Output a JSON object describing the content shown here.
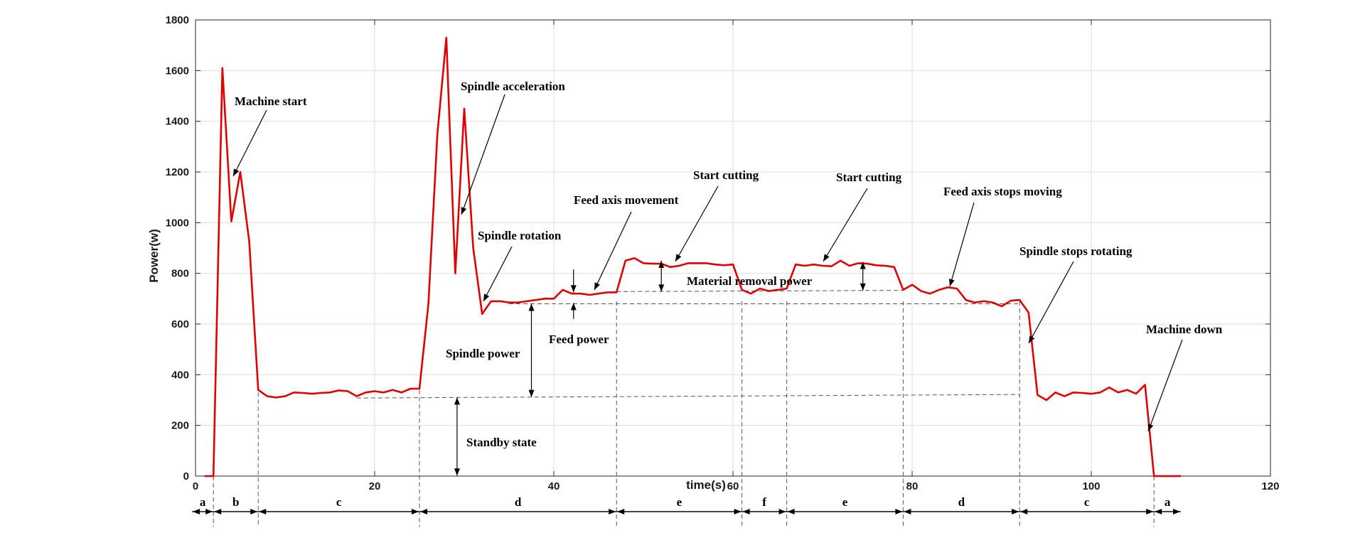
{
  "chart_data": {
    "type": "line",
    "xlabel": "time(s)",
    "ylabel": "Power(w)",
    "xlim": [
      0,
      120
    ],
    "ylim": [
      0,
      1800
    ],
    "xticks": [
      0,
      20,
      40,
      60,
      80,
      100,
      120
    ],
    "yticks": [
      0,
      200,
      400,
      600,
      800,
      1000,
      1200,
      1400,
      1600,
      1800
    ],
    "grid": true,
    "line_color": "#e00000",
    "series": [
      {
        "x": [
          1,
          2,
          3,
          4,
          5,
          6,
          7,
          8,
          9,
          10,
          11,
          12,
          13,
          14,
          15,
          16,
          17,
          18,
          19,
          20,
          21,
          22,
          23,
          24,
          25,
          26,
          27,
          28,
          29,
          30,
          31,
          32,
          33,
          34,
          35,
          36,
          37,
          38,
          39,
          40,
          41,
          42,
          43,
          44,
          45,
          46,
          47,
          48,
          49,
          50,
          51,
          52,
          53,
          54,
          55,
          56,
          57,
          58,
          59,
          60,
          61,
          62,
          63,
          64,
          65,
          66,
          67,
          68,
          69,
          70,
          71,
          72,
          73,
          74,
          75,
          76,
          77,
          78,
          79,
          80,
          81,
          82,
          83,
          84,
          85,
          86,
          87,
          88,
          89,
          90,
          91,
          92,
          93,
          94,
          95,
          96,
          97,
          98,
          99,
          100,
          101,
          102,
          103,
          104,
          105,
          106,
          107,
          108,
          109,
          110
        ],
        "values": [
          0,
          0,
          1610,
          1005,
          1200,
          925,
          340,
          315,
          310,
          315,
          330,
          328,
          325,
          328,
          330,
          338,
          335,
          315,
          330,
          335,
          330,
          340,
          330,
          345,
          345,
          680,
          1350,
          1730,
          800,
          1450,
          900,
          640,
          690,
          690,
          685,
          685,
          690,
          695,
          700,
          700,
          735,
          720,
          720,
          715,
          720,
          725,
          725,
          850,
          860,
          840,
          838,
          838,
          825,
          830,
          840,
          840,
          840,
          835,
          832,
          835,
          735,
          720,
          740,
          730,
          735,
          740,
          835,
          830,
          835,
          830,
          828,
          850,
          830,
          840,
          838,
          832,
          830,
          825,
          735,
          755,
          730,
          720,
          735,
          745,
          740,
          695,
          685,
          690,
          685,
          670,
          692,
          695,
          645,
          320,
          300,
          330,
          315,
          330,
          328,
          325,
          330,
          350,
          330,
          340,
          325,
          360,
          0,
          0,
          0,
          0
        ]
      }
    ],
    "annotations": [
      "Machine  start",
      "Spindle acceleration",
      "Spindle rotation",
      "Feed axis movement",
      "Start cutting",
      "Start cutting",
      "Feed axis stops moving",
      "Spindle stops rotating",
      "Machine down",
      "Material removal power",
      "Feed power",
      "Spindle power",
      "Standby  state"
    ],
    "phases": [
      {
        "label": "a",
        "from": 0,
        "to": 2
      },
      {
        "label": "b",
        "from": 2,
        "to": 7
      },
      {
        "label": "c",
        "from": 7,
        "to": 25
      },
      {
        "label": "d",
        "from": 25,
        "to": 47
      },
      {
        "label": "e",
        "from": 47,
        "to": 61
      },
      {
        "label": "f",
        "from": 61,
        "to": 66
      },
      {
        "label": "e",
        "from": 66,
        "to": 79
      },
      {
        "label": "d",
        "from": 79,
        "to": 92
      },
      {
        "label": "c",
        "from": 92,
        "to": 107
      },
      {
        "label": "a",
        "from": 107,
        "to": 110
      }
    ]
  }
}
